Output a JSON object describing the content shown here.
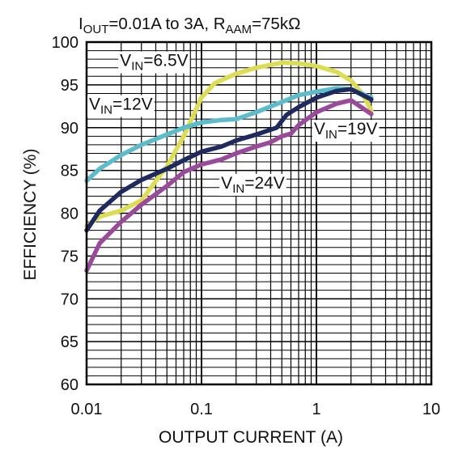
{
  "chart_data": {
    "type": "line",
    "title": "I_OUT=0.01A to 3A, R_AAM=75kΩ",
    "title_parts": {
      "i": "I",
      "out_sub": "OUT",
      "range": "=0.01A to 3A, R",
      "aam_sub": "AAM",
      "res": "=75kΩ"
    },
    "xlabel": "OUTPUT CURRENT (A)",
    "ylabel": "EFFICIENCY (%)",
    "x_scale": "log",
    "xlim": [
      0.01,
      10
    ],
    "ylim": [
      60,
      100
    ],
    "grid": true,
    "x_ticks": [
      {
        "value": 0.01,
        "label": "0.01"
      },
      {
        "value": 0.1,
        "label": "0.1"
      },
      {
        "value": 1,
        "label": "1"
      },
      {
        "value": 10,
        "label": "10"
      }
    ],
    "y_ticks": [
      {
        "value": 60,
        "label": "60"
      },
      {
        "value": 65,
        "label": "65"
      },
      {
        "value": 70,
        "label": "70"
      },
      {
        "value": 75,
        "label": "75"
      },
      {
        "value": 80,
        "label": "80"
      },
      {
        "value": 85,
        "label": "85"
      },
      {
        "value": 90,
        "label": "90"
      },
      {
        "value": 95,
        "label": "95"
      },
      {
        "value": 100,
        "label": "100"
      }
    ],
    "series": [
      {
        "name": "VIN=6.5V",
        "label": {
          "v": "V",
          "sub": "IN",
          "rest": "=6.5V"
        },
        "color": "#dddd55",
        "x": [
          0.01,
          0.013,
          0.02,
          0.03,
          0.05,
          0.07,
          0.1,
          0.13,
          0.2,
          0.3,
          0.5,
          0.7,
          1,
          1.5,
          2,
          2.5,
          3
        ],
        "y": [
          78.5,
          79.6,
          80.3,
          81.5,
          85.5,
          89,
          93.5,
          95.2,
          96.3,
          97,
          97.6,
          97.5,
          97.2,
          96.5,
          95.5,
          94,
          92
        ]
      },
      {
        "name": "VIN=12V",
        "label": {
          "v": "V",
          "sub": "IN",
          "rest": "=12V"
        },
        "color": "#5bbccc",
        "x": [
          0.01,
          0.013,
          0.02,
          0.03,
          0.05,
          0.07,
          0.1,
          0.15,
          0.2,
          0.3,
          0.5,
          0.7,
          1,
          1.5,
          2,
          3
        ],
        "y": [
          83.8,
          85.2,
          86.8,
          88,
          89.2,
          90,
          90.6,
          90.9,
          91,
          91.8,
          93,
          93.8,
          94.2,
          94.6,
          94.5,
          93.5
        ]
      },
      {
        "name": "VIN=19V",
        "label": {
          "v": "V",
          "sub": "IN",
          "rest": "=19V"
        },
        "color": "#1e2a5e",
        "x": [
          0.01,
          0.013,
          0.02,
          0.03,
          0.05,
          0.07,
          0.1,
          0.15,
          0.2,
          0.3,
          0.45,
          0.55,
          0.7,
          1,
          1.5,
          2,
          3
        ],
        "y": [
          78,
          80.3,
          82.5,
          83.9,
          85.2,
          86.2,
          87.2,
          87.8,
          88.5,
          89.2,
          90,
          91.5,
          92.4,
          93.5,
          94.3,
          94.5,
          93.3
        ]
      },
      {
        "name": "VIN=24V",
        "label": {
          "v": "V",
          "sub": "IN",
          "rest": "=24V"
        },
        "color": "#9b4a9b",
        "x": [
          0.01,
          0.013,
          0.02,
          0.03,
          0.05,
          0.07,
          0.1,
          0.15,
          0.2,
          0.3,
          0.4,
          0.5,
          0.6,
          0.7,
          1,
          1.5,
          2,
          3
        ],
        "y": [
          73.3,
          76.5,
          79,
          81,
          83.2,
          84.8,
          85.7,
          86.3,
          87,
          87.8,
          88.3,
          89,
          89.3,
          90.3,
          91.8,
          92.8,
          93.2,
          91.6
        ]
      }
    ],
    "annotations": [
      {
        "series": "VIN=6.5V",
        "x": 0.0195,
        "y": 97.2
      },
      {
        "series": "VIN=12V",
        "x": 0.0105,
        "y": 92.1
      },
      {
        "series": "VIN=19V",
        "x": 0.95,
        "y": 89.2
      },
      {
        "series": "VIN=24V",
        "x": 0.148,
        "y": 82.9
      }
    ]
  }
}
